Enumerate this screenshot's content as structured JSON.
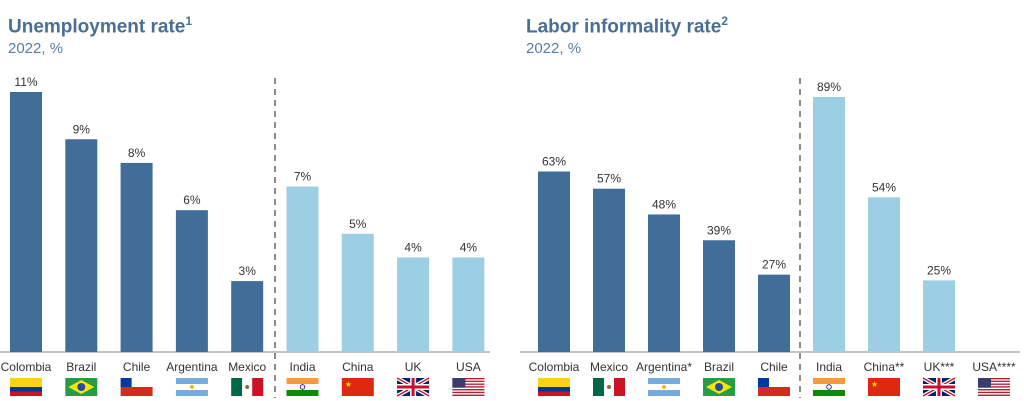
{
  "chart_data": [
    {
      "type": "bar",
      "title": "Unemployment rate",
      "title_note": "1",
      "subtitle": "2022, %",
      "unit": "%",
      "categories": [
        "Colombia",
        "Brazil",
        "Chile",
        "Argentina",
        "Mexico",
        "India",
        "China",
        "UK",
        "USA"
      ],
      "values": [
        11,
        9,
        8,
        6,
        3,
        7,
        5,
        4,
        4
      ],
      "groups": [
        "latam",
        "latam",
        "latam",
        "latam",
        "latam",
        "other",
        "other",
        "other",
        "other"
      ],
      "flags": [
        "co",
        "br",
        "cl",
        "ar",
        "mx",
        "in",
        "cn",
        "uk",
        "us"
      ],
      "ylim": [
        0,
        11
      ],
      "grid": false
    },
    {
      "type": "bar",
      "title": "Labor informality rate",
      "title_note": "2",
      "subtitle": "2022, %",
      "unit": "%",
      "categories": [
        "Colombia",
        "Mexico",
        "Argentina*",
        "Brazil",
        "Chile",
        "India",
        "China**",
        "UK***",
        "USA****"
      ],
      "values": [
        63,
        57,
        48,
        39,
        27,
        89,
        54,
        25,
        null
      ],
      "groups": [
        "latam",
        "latam",
        "latam",
        "latam",
        "latam",
        "other",
        "other",
        "other",
        "other"
      ],
      "flags": [
        "co",
        "mx",
        "ar",
        "br",
        "cl",
        "in",
        "cn",
        "uk",
        "us"
      ],
      "ylim": [
        0,
        89
      ],
      "grid": false
    }
  ],
  "colors": {
    "latam": "#416e98",
    "other": "#9ccfe4",
    "title": "#4a6f94",
    "divider": "#666666"
  }
}
